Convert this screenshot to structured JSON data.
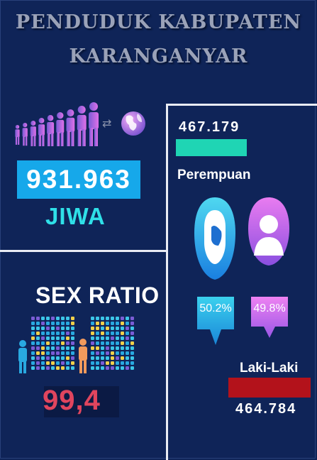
{
  "header": {
    "title_line1": "PENDUDUK KABUPATEN",
    "title_line2": "KARANGANYAR"
  },
  "total": {
    "value": "931.963",
    "unit": "JIWA"
  },
  "sex_ratio": {
    "label": "SEX RATIO",
    "value": "99,4"
  },
  "female": {
    "count": "467.179",
    "label": "Perempuan",
    "percent": "50.2%",
    "color": "#1fd5b4"
  },
  "male": {
    "count": "464.784",
    "label": "Laki-Laki",
    "percent": "49.8%",
    "color": "#b3121b"
  },
  "icons": [
    "people-growth-icon",
    "exchange-arrows-icon",
    "globe-icon",
    "female-avatar-icon",
    "male-avatar-icon",
    "population-grid-icon"
  ]
}
